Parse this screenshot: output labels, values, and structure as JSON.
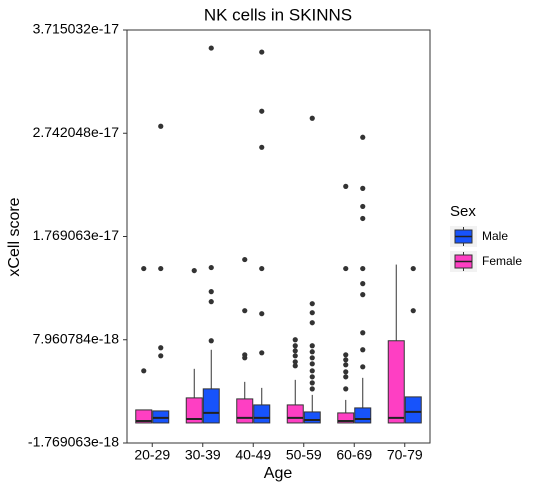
{
  "chart_data": {
    "type": "boxplot",
    "title": "NK cells in SKINNS",
    "x_label": "Age",
    "y_label": "xCell score",
    "legend_title": "Sex",
    "categories": [
      "20-29",
      "30-39",
      "40-49",
      "50-59",
      "60-69",
      "70-79"
    ],
    "ylim": [
      -1.769063e-18,
      3.715032e-17
    ],
    "yticks": [
      {
        "value": -1.769063e-18,
        "label": "-1.769063e-18"
      },
      {
        "value": 7.960784e-18,
        "label": "7.960784e-18"
      },
      {
        "value": 1.769063e-17,
        "label": "1.769063e-17"
      },
      {
        "value": 2.742048e-17,
        "label": "2.742048e-17"
      },
      {
        "value": 3.715032e-17,
        "label": "3.715032e-17"
      }
    ],
    "series": [
      {
        "name": "Male",
        "color": "#1753fb",
        "values": [
          {
            "low": 1.2e-19,
            "q1": 1.2e-19,
            "median": 5.93e-19,
            "q3": 1.254e-18,
            "high": 1.254e-18,
            "outliers": [
              2.808e-17,
              1.4667e-17,
              7.205e-18,
              6.449e-18
            ]
          },
          {
            "low": 1.2e-19,
            "q1": 1.2e-19,
            "median": 1.065e-18,
            "q3": 3.332e-18,
            "high": 7.016e-18,
            "outliers": [
              3.5448e-17,
              1.4762e-17,
              1.2494e-17,
              1.155e-17,
              7.866e-18
            ]
          },
          {
            "low": 1.2e-19,
            "q1": 1.2e-19,
            "median": 5.93e-19,
            "q3": 1.82e-18,
            "high": 3.426e-18,
            "outliers": [
              3.507e-17,
              2.9497e-17,
              2.6097e-17,
              1.4667e-17,
              1.0416e-17,
              6.732e-18
            ]
          },
          {
            "low": 1.2e-19,
            "q1": 1.2e-19,
            "median": 4.04e-19,
            "q3": 1.159e-18,
            "high": 2.765e-18,
            "outliers": [
              2.8836e-17,
              1.1361e-17,
              1.0511e-17,
              9.566e-18,
              7.394e-18,
              6.827e-18,
              6.26e-18,
              5.693e-18,
              5.032e-18,
              4.465e-18,
              3.899e-18,
              3.332e-18
            ]
          },
          {
            "low": 1.2e-19,
            "q1": 1.2e-19,
            "median": 4.98e-19,
            "q3": 1.537e-18,
            "high": 4.371e-18,
            "outliers": [
              2.7041e-17,
              2.2224e-17,
              2.0524e-17,
              1.939e-17,
              1.4667e-17,
              1.325e-17,
              1.2211e-17,
              8.622e-18,
              7.016e-18,
              5.41e-18
            ]
          },
          {
            "low": 1.2e-19,
            "q1": 1.2e-19,
            "median": 1.159e-18,
            "q3": 2.576e-18,
            "high": 2.576e-18,
            "outliers": [
              1.4667e-17,
              1.07e-17
            ]
          }
        ]
      },
      {
        "name": "Female",
        "color": "#fe3fc3",
        "values": [
          {
            "low": 1.2e-19,
            "q1": 1.2e-19,
            "median": 3.09e-19,
            "q3": 1.348e-18,
            "high": 1.348e-18,
            "outliers": [
              1.4667e-17,
              5.032e-18
            ]
          },
          {
            "low": 1.2e-19,
            "q1": 1.2e-19,
            "median": 4.98e-19,
            "q3": 2.482e-18,
            "high": 5.221e-18,
            "outliers": [
              1.4478e-17
            ]
          },
          {
            "low": 1.2e-19,
            "q1": 1.2e-19,
            "median": 5.93e-19,
            "q3": 2.387e-18,
            "high": 3.993e-18,
            "outliers": [
              1.5517e-17,
              1.07e-17,
              6.543e-18,
              6.26e-18
            ]
          },
          {
            "low": 1.2e-19,
            "q1": 1.2e-19,
            "median": 5.93e-19,
            "q3": 1.82e-18,
            "high": 4.182e-18,
            "outliers": [
              7.96e-18,
              7.394e-18,
              6.921e-18,
              6.449e-18,
              5.882e-18,
              5.504e-18
            ]
          },
          {
            "low": 1.2e-19,
            "q1": 1.2e-19,
            "median": 3.09e-19,
            "q3": 1.065e-18,
            "high": 2.293e-18,
            "outliers": [
              2.2413e-17,
              1.4667e-17,
              6.543e-18,
              6.071e-18,
              5.599e-18,
              4.938e-18,
              4.465e-18,
              3.332e-18
            ]
          },
          {
            "low": 1.2e-19,
            "q1": 1.2e-19,
            "median": 5.93e-19,
            "q3": 7.866e-18,
            "high": 1.5045e-17,
            "outliers": []
          }
        ]
      }
    ]
  }
}
